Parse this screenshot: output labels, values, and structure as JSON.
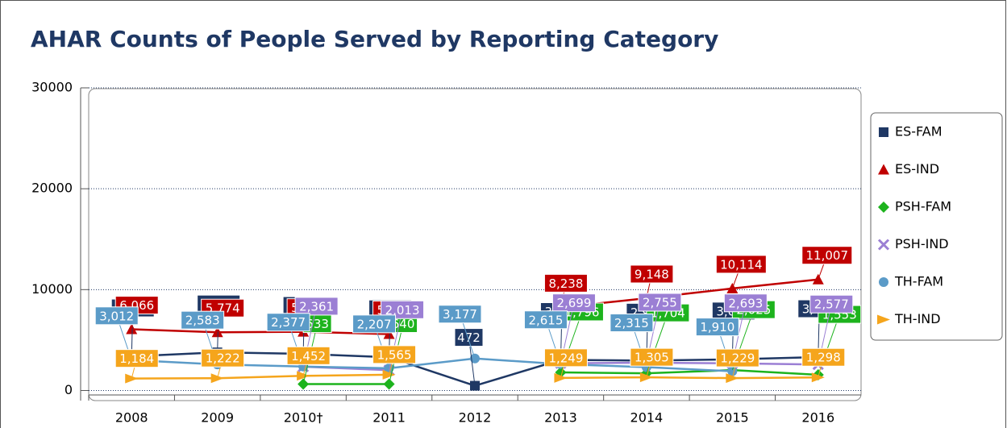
{
  "chart_data": {
    "type": "line",
    "title": "AHAR Counts of People Served by Reporting Category",
    "categories": [
      "2008",
      "2009",
      "2010†",
      "2011",
      "2012",
      "2013",
      "2014",
      "2015",
      "2016"
    ],
    "ylim": [
      -1000,
      30000
    ],
    "yticks": [
      0,
      10000,
      20000,
      30000
    ],
    "grid": true,
    "legend": "right",
    "series": [
      {
        "name": "ES-FAM",
        "color": "#1f3864",
        "marker": "square",
        "values": [
          3389,
          3781,
          3631,
          3299,
          472,
          3035,
          2967,
          3085,
          3312
        ],
        "value_labels": [
          "3,389",
          "3,781",
          "3,631",
          "3,299",
          "472",
          "3,035",
          "2,967",
          "3,085",
          "3,312"
        ]
      },
      {
        "name": "ES-IND",
        "color": "#c00000",
        "marker": "triangle",
        "values": [
          6066,
          5774,
          5818,
          5593,
          null,
          8238,
          9148,
          10114,
          11007
        ],
        "value_labels": [
          "6,066",
          "5,774",
          "5,818",
          "5,593",
          null,
          "8,238",
          "9,148",
          "10,114",
          "11,007"
        ]
      },
      {
        "name": "PSH-FAM",
        "color": "#1db31d",
        "marker": "diamond",
        "values": [
          null,
          null,
          633,
          640,
          null,
          1796,
          1704,
          2025,
          1553
        ],
        "value_labels": [
          null,
          null,
          "633",
          "640",
          null,
          "1,796",
          "1,704",
          "2,025",
          "1,553"
        ]
      },
      {
        "name": "PSH-IND",
        "color": "#9b7fd4",
        "marker": "x",
        "values": [
          null,
          null,
          2361,
          2013,
          null,
          2699,
          2755,
          2693,
          2577
        ],
        "value_labels": [
          null,
          null,
          "2,361",
          "2,013",
          null,
          "2,699",
          "2,755",
          "2,693",
          "2,577"
        ]
      },
      {
        "name": "TH-FAM",
        "color": "#5b9bc8",
        "marker": "circle",
        "values": [
          3012,
          2583,
          2377,
          2207,
          3177,
          2615,
          2315,
          1910,
          null
        ],
        "value_labels": [
          "3,012",
          "2,583",
          "2,377",
          "2,207",
          "3,177",
          "2,615",
          "2,315",
          "1,910",
          null
        ]
      },
      {
        "name": "TH-IND",
        "color": "#f5a51c",
        "marker": "arrow",
        "values": [
          1184,
          1222,
          1452,
          1565,
          null,
          1249,
          1305,
          1229,
          1298
        ],
        "value_labels": [
          "1,184",
          "1,222",
          "1,452",
          "1,565",
          null,
          "1,249",
          "1,305",
          "1,229",
          "1,298"
        ]
      }
    ]
  }
}
